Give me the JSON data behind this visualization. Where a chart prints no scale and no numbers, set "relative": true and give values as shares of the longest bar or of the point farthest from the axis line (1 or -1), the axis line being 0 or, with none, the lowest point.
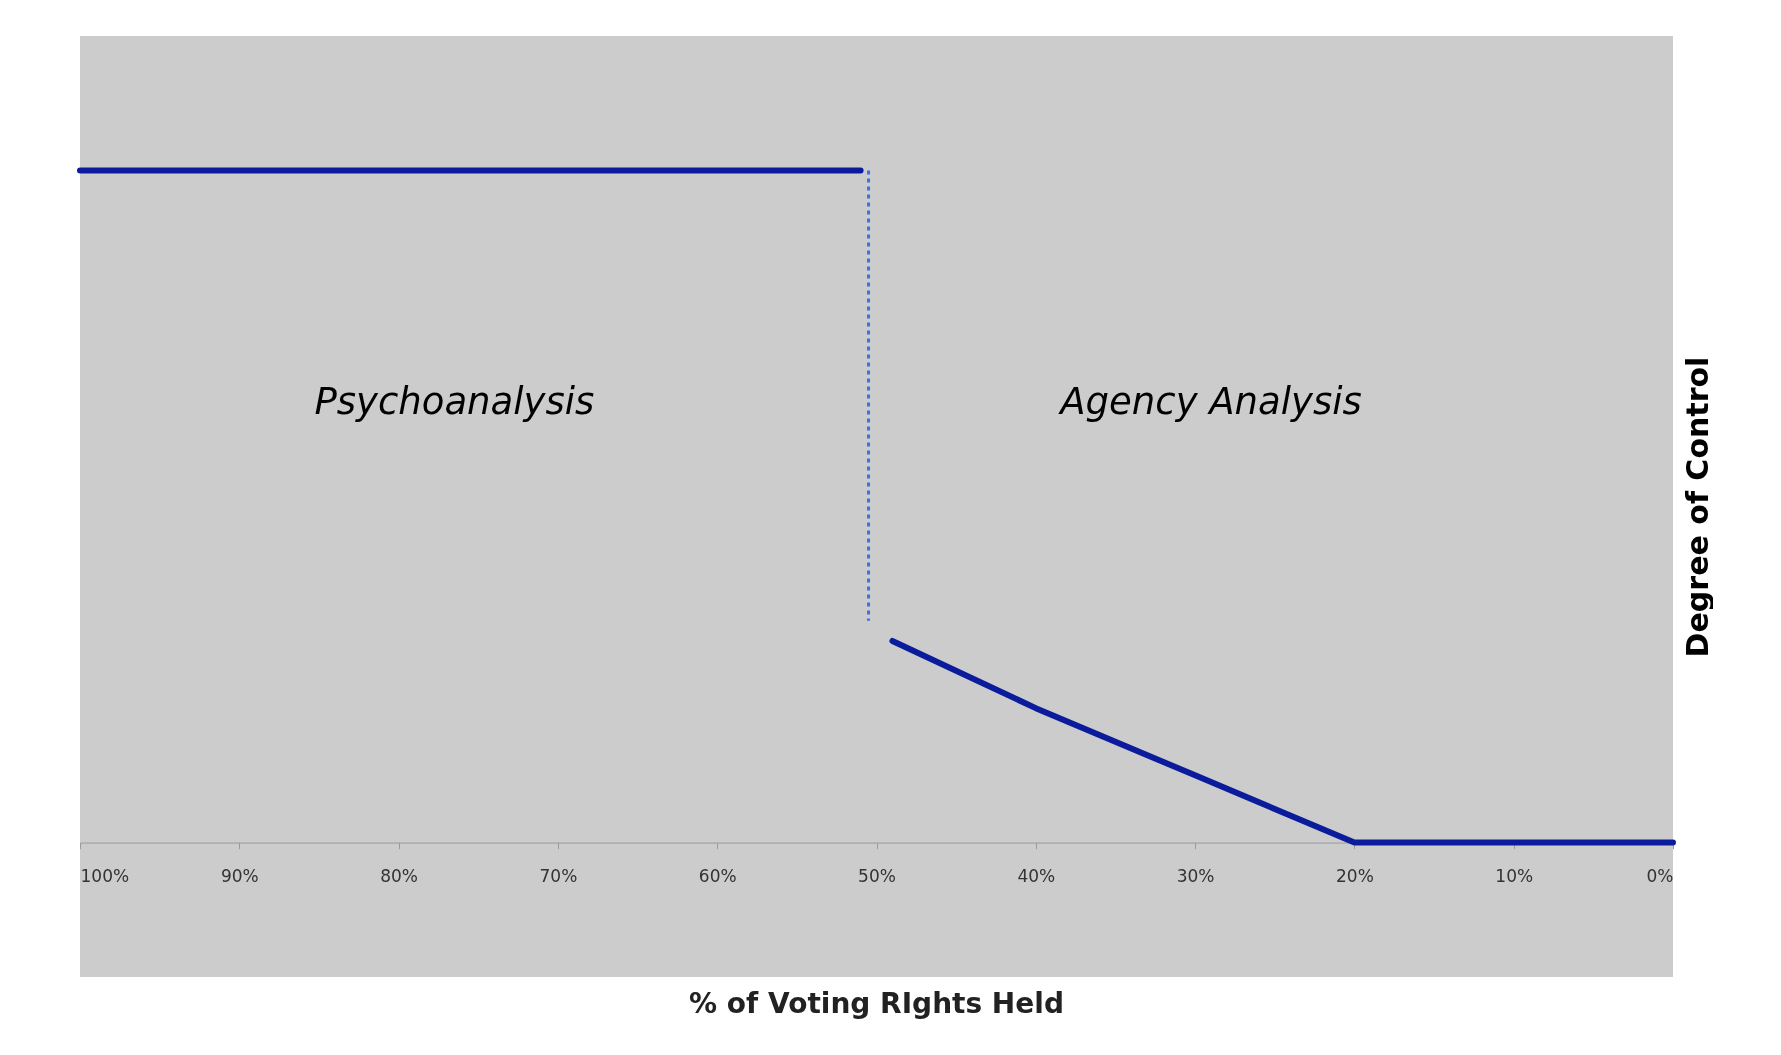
{
  "chart_data": {
    "type": "line",
    "relative": true,
    "xlabel": "% of Voting RIghts Held",
    "ylabel": "Degree of Control",
    "xlim": [
      100,
      0
    ],
    "xticks": [
      {
        "value": 100,
        "label": "100%"
      },
      {
        "value": 90,
        "label": "90%"
      },
      {
        "value": 80,
        "label": "80%"
      },
      {
        "value": 70,
        "label": "70%"
      },
      {
        "value": 60,
        "label": "60%"
      },
      {
        "value": 50,
        "label": "50%"
      },
      {
        "value": 40,
        "label": "40%"
      },
      {
        "value": 30,
        "label": "30%"
      },
      {
        "value": 20,
        "label": "20%"
      },
      {
        "value": 10,
        "label": "10%"
      },
      {
        "value": 0,
        "label": "0%"
      }
    ],
    "series": [
      {
        "color": "#0a1c9c",
        "x": [
          100,
          51
        ],
        "values": [
          1,
          1
        ]
      },
      {
        "color": "#3d6ef0",
        "line_style": "dotted",
        "x": [
          50.5,
          50.5
        ],
        "values": [
          1,
          0.33
        ]
      },
      {
        "color": "#0a1c9c",
        "x": [
          49,
          40,
          30,
          20,
          0
        ],
        "values": [
          0.3,
          0.2,
          0.1,
          0,
          0
        ]
      }
    ],
    "annotations": [
      "Psychoanalysis",
      "Agency Analysis"
    ],
    "grid": false
  }
}
